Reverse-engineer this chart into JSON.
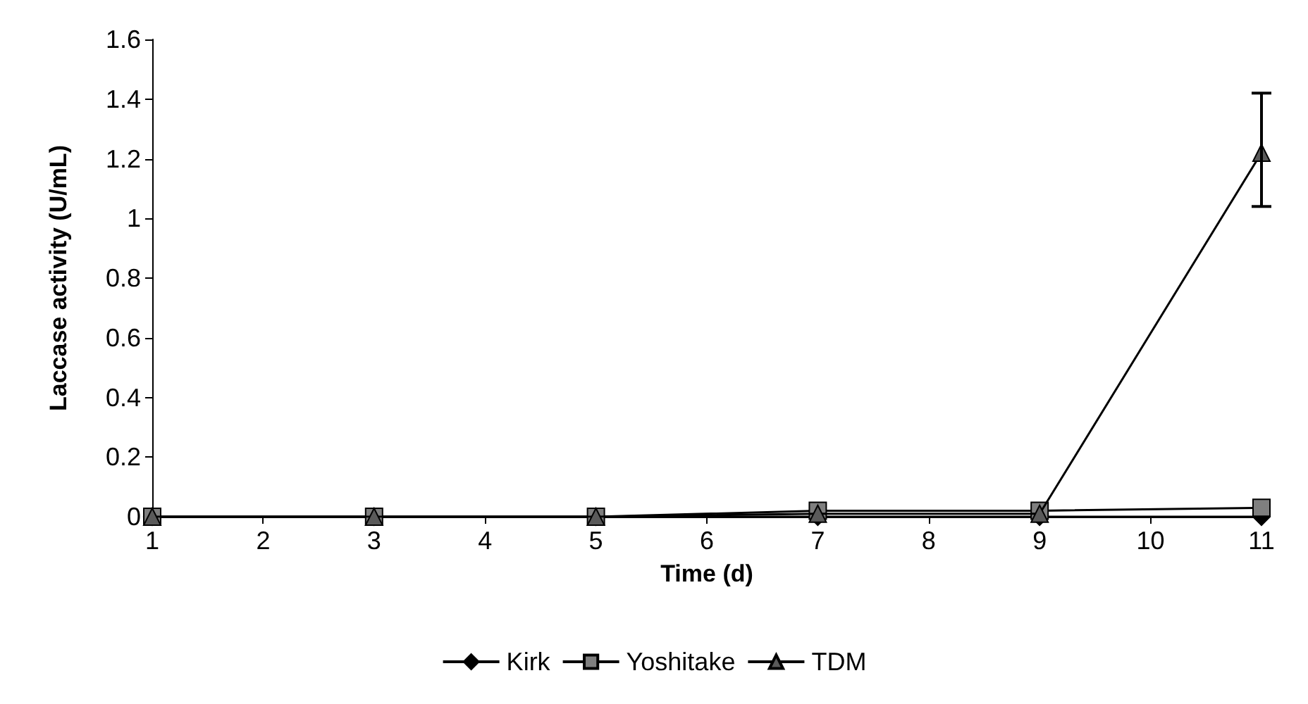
{
  "chart_data": {
    "type": "line",
    "xlabel": "Time (d)",
    "ylabel": "Laccase activity (U/mL)",
    "x": [
      1,
      3,
      5,
      7,
      9,
      11
    ],
    "series": [
      {
        "name": "Kirk",
        "color": "#000000",
        "marker": "diamond",
        "values": [
          0,
          0,
          0,
          0,
          0,
          0
        ]
      },
      {
        "name": "Yoshitake",
        "color": "#7f7f7f",
        "marker": "square",
        "values": [
          0,
          0,
          0,
          0.02,
          0.02,
          0.03
        ]
      },
      {
        "name": "TDM",
        "color": "#5a5a5a",
        "marker": "triangle",
        "values": [
          0,
          0,
          0,
          0.01,
          0.01,
          1.22
        ],
        "errors": [
          null,
          null,
          null,
          null,
          null,
          [
            1.04,
            1.42
          ]
        ]
      }
    ],
    "xlim": [
      1,
      11
    ],
    "xticks": [
      1,
      2,
      3,
      4,
      5,
      6,
      7,
      8,
      9,
      10,
      11
    ],
    "ylim": [
      0,
      1.6
    ],
    "yticks": [
      0,
      0.2,
      0.4,
      0.6,
      0.8,
      1,
      1.2,
      1.4,
      1.6
    ],
    "grid": false,
    "legend": "bottom"
  }
}
